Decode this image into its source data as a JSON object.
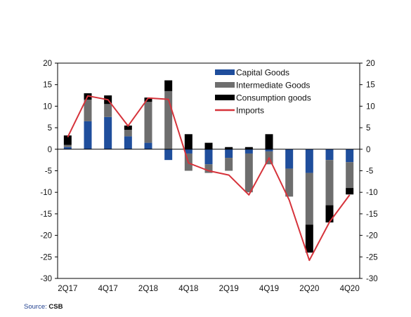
{
  "chart_data": {
    "type": "bar",
    "stacked": true,
    "categories": [
      "2Q17",
      "3Q17",
      "4Q17",
      "1Q18",
      "2Q18",
      "3Q18",
      "4Q18",
      "1Q19",
      "2Q19",
      "3Q19",
      "4Q19",
      "1Q20",
      "2Q20",
      "3Q20",
      "4Q20"
    ],
    "x_tick_labels": [
      "2Q17",
      "4Q17",
      "2Q18",
      "4Q18",
      "2Q19",
      "4Q19",
      "2Q20",
      "4Q20"
    ],
    "series": [
      {
        "name": "Capital Goods",
        "type": "bar",
        "color": "#1f4e9c",
        "values": [
          0.5,
          6.5,
          7.5,
          3.0,
          1.5,
          -2.5,
          -1.0,
          -3.5,
          -2.0,
          -1.0,
          -0.5,
          -4.5,
          -5.5,
          -2.5,
          -3.0
        ]
      },
      {
        "name": "Intermediate Goods",
        "type": "bar",
        "color": "#6e6e6e",
        "values": [
          0.5,
          5.0,
          3.0,
          1.5,
          9.5,
          13.5,
          -4.0,
          -2.0,
          -3.0,
          -9.0,
          -3.0,
          -6.5,
          -12.0,
          -10.5,
          -6.0
        ]
      },
      {
        "name": "Consumption goods",
        "type": "bar",
        "color": "#000000",
        "values": [
          2.2,
          1.5,
          2.0,
          1.0,
          1.0,
          2.5,
          3.5,
          1.5,
          0.5,
          0.5,
          3.5,
          0.0,
          -6.5,
          -4.0,
          -1.5
        ]
      },
      {
        "name": "Imports",
        "type": "line",
        "color": "#d6333b",
        "values": [
          2.8,
          12.4,
          11.5,
          5.4,
          11.9,
          11.6,
          -3.2,
          -5.0,
          -6.0,
          -10.6,
          -2.0,
          -11.8,
          -25.8,
          -16.9,
          -10.6
        ]
      }
    ],
    "ylim": [
      -30,
      20
    ],
    "yticks": [
      -30,
      -25,
      -20,
      -15,
      -10,
      -5,
      0,
      5,
      10,
      15,
      20
    ],
    "y_tick_labels": [
      "-30",
      "-25",
      "-20",
      "-15",
      "-10",
      "-5",
      "0",
      "5",
      "10",
      "15",
      "20"
    ],
    "dual_y_axis": true,
    "legend_position": "top-right",
    "grid": false,
    "title": "",
    "xlabel": "",
    "ylabel": ""
  },
  "source": {
    "label": "Source:",
    "value": "CSB"
  }
}
